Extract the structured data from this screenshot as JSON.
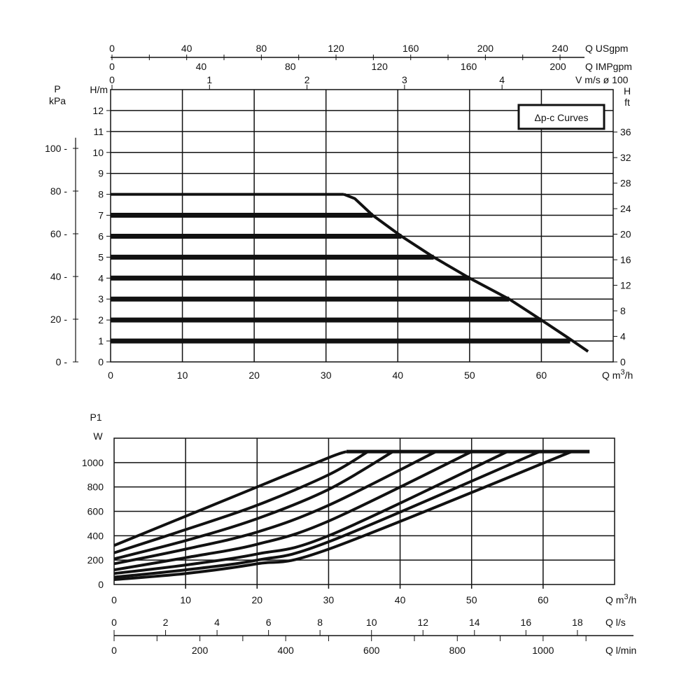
{
  "chart_data": [
    {
      "type": "line",
      "title": "Δp-c Curves",
      "xlabel": "Q m3/h",
      "ylabel_left": "H/m",
      "ylabel_far_left": "P kPa",
      "ylabel_right": "H ft",
      "xlim": [
        0,
        70
      ],
      "ylim": [
        0,
        13
      ],
      "grid": true,
      "x_ticks": [
        0,
        10,
        20,
        30,
        40,
        50,
        60
      ],
      "y_ticks": [
        0,
        1,
        2,
        3,
        4,
        5,
        6,
        7,
        8,
        9,
        10,
        11,
        12
      ],
      "kpa_ticks": [
        0,
        20,
        40,
        60,
        80,
        100
      ],
      "ft_ticks": [
        0,
        4,
        8,
        12,
        16,
        20,
        24,
        28,
        32,
        36
      ],
      "top_axes": [
        {
          "label": "Q USgpm",
          "ticks": [
            0,
            40,
            80,
            120,
            160,
            200,
            240
          ]
        },
        {
          "label": "Q IMPgpm",
          "ticks": [
            0,
            40,
            80,
            120,
            160,
            200
          ]
        },
        {
          "label": "V m/s ø 100",
          "ticks": [
            0,
            1,
            2,
            3,
            4
          ]
        }
      ],
      "max_curve": [
        [
          32.5,
          8
        ],
        [
          34,
          7.8
        ],
        [
          36.5,
          7
        ],
        [
          40.5,
          6
        ],
        [
          45,
          5
        ],
        [
          50,
          4
        ],
        [
          55.5,
          3
        ],
        [
          60,
          2
        ],
        [
          63.5,
          1.2
        ],
        [
          66.5,
          0.5
        ]
      ],
      "series": [
        {
          "name": "8 m",
          "h": 8,
          "q_end": 32.5
        },
        {
          "name": "7 m",
          "h": 7,
          "q_end": 36.5
        },
        {
          "name": "6 m",
          "h": 6,
          "q_end": 40.5
        },
        {
          "name": "5 m",
          "h": 5,
          "q_end": 45
        },
        {
          "name": "4 m",
          "h": 4,
          "q_end": 50
        },
        {
          "name": "3 m",
          "h": 3,
          "q_end": 55.5
        },
        {
          "name": "2 m",
          "h": 2,
          "q_end": 60
        },
        {
          "name": "1 m",
          "h": 1,
          "q_end": 64
        }
      ]
    },
    {
      "type": "line",
      "title": "",
      "ylabel": "P1 W",
      "xlabel": "Q m3/h",
      "xlim": [
        0,
        70
      ],
      "ylim": [
        0,
        1200
      ],
      "grid": true,
      "x_ticks": [
        0,
        10,
        20,
        30,
        40,
        50,
        60
      ],
      "y_ticks": [
        0,
        200,
        400,
        600,
        800,
        1000
      ],
      "bottom_axes": [
        {
          "label": "Q l/s",
          "ticks": [
            0,
            2,
            4,
            6,
            8,
            10,
            12,
            14,
            16,
            18
          ]
        },
        {
          "label": "Q l/min",
          "ticks": [
            0,
            200,
            400,
            600,
            800,
            1000
          ]
        }
      ],
      "limit_line": [
        [
          32.5,
          1090
        ],
        [
          66.5,
          1090
        ]
      ],
      "series": [
        {
          "name": "8 m",
          "points": [
            [
              0,
              320
            ],
            [
              10,
              560
            ],
            [
              20,
              800
            ],
            [
              30,
              1040
            ],
            [
              32.5,
              1090
            ]
          ]
        },
        {
          "name": "7 m",
          "points": [
            [
              0,
              260
            ],
            [
              10,
              450
            ],
            [
              20,
              650
            ],
            [
              30,
              900
            ],
            [
              35.5,
              1090
            ]
          ]
        },
        {
          "name": "6 m",
          "points": [
            [
              0,
              210
            ],
            [
              10,
              360
            ],
            [
              20,
              540
            ],
            [
              30,
              780
            ],
            [
              39,
              1090
            ]
          ]
        },
        {
          "name": "5 m",
          "points": [
            [
              0,
              170
            ],
            [
              10,
              290
            ],
            [
              20,
              430
            ],
            [
              30,
              650
            ],
            [
              45,
              1090
            ]
          ]
        },
        {
          "name": "4 m",
          "points": [
            [
              0,
              120
            ],
            [
              10,
              220
            ],
            [
              20,
              330
            ],
            [
              30,
              520
            ],
            [
              50,
              1090
            ]
          ]
        },
        {
          "name": "3 m",
          "points": [
            [
              0,
              90
            ],
            [
              10,
              160
            ],
            [
              20,
              250
            ],
            [
              30,
              400
            ],
            [
              55,
              1090
            ]
          ]
        },
        {
          "name": "2 m",
          "points": [
            [
              0,
              60
            ],
            [
              10,
              120
            ],
            [
              20,
              200
            ],
            [
              30,
              350
            ],
            [
              59.5,
              1090
            ]
          ]
        },
        {
          "name": "1 m",
          "points": [
            [
              0,
              40
            ],
            [
              10,
              90
            ],
            [
              20,
              170
            ],
            [
              30,
              290
            ],
            [
              64,
              1090
            ]
          ]
        }
      ]
    }
  ]
}
